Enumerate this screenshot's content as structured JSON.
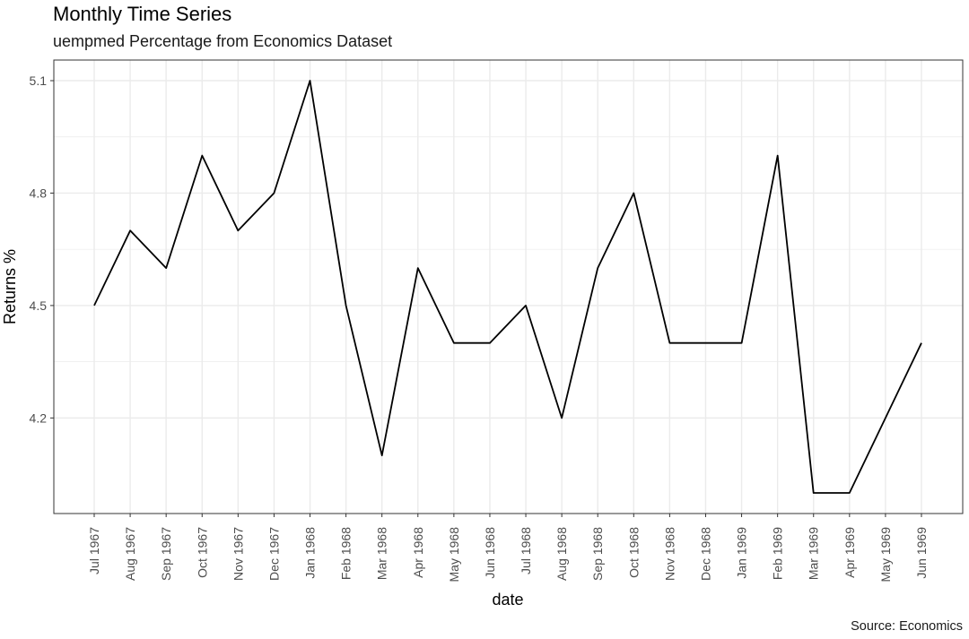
{
  "chart_data": {
    "type": "line",
    "title": "Monthly Time Series",
    "subtitle": "uempmed Percentage from Economics Dataset",
    "caption": "Source: Economics",
    "xlabel": "date",
    "ylabel": "Returns %",
    "categories": [
      "Jul 1967",
      "Aug 1967",
      "Sep 1967",
      "Oct 1967",
      "Nov 1967",
      "Dec 1967",
      "Jan 1968",
      "Feb 1968",
      "Mar 1968",
      "Apr 1968",
      "May 1968",
      "Jun 1968",
      "Jul 1968",
      "Aug 1968",
      "Sep 1968",
      "Oct 1968",
      "Nov 1968",
      "Dec 1968",
      "Jan 1969",
      "Feb 1969",
      "Mar 1969",
      "Apr 1969",
      "May 1969",
      "Jun 1969"
    ],
    "values": [
      4.5,
      4.7,
      4.6,
      4.9,
      4.7,
      4.8,
      5.1,
      4.5,
      4.1,
      4.6,
      4.4,
      4.4,
      4.5,
      4.2,
      4.6,
      4.8,
      4.4,
      4.4,
      4.4,
      4.9,
      4.0,
      4.0,
      4.2,
      4.4
    ],
    "yticks": [
      4.2,
      4.5,
      4.8,
      5.1
    ],
    "ytick_labels": [
      "4.2",
      "4.5",
      "4.8",
      "5.1"
    ],
    "ylim": [
      3.945,
      5.155
    ],
    "grid": true,
    "line_color": "#000000",
    "grid_color": "#ebebeb"
  }
}
